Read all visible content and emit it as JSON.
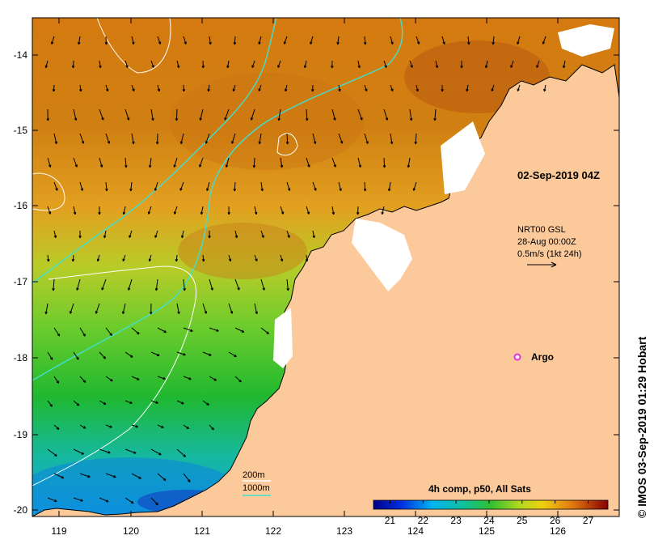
{
  "map": {
    "timestamp": "02-Sep-2019 04Z",
    "current_info": [
      "NRT00 GSL",
      "28-Aug 00:00Z",
      "0.5m/s (1kt 24h)"
    ],
    "argo_label": "Argo",
    "credit": "© IMOS 03-Sep-2019 01:29 Hobart",
    "depth_legend": {
      "line1": "200m",
      "line2": "1000m"
    },
    "lon_ticks": [
      "119",
      "120",
      "121",
      "122",
      "123",
      "124",
      "125",
      "126"
    ],
    "lat_ticks": [
      "-14",
      "-15",
      "-16",
      "-17",
      "-18",
      "-19",
      "-20"
    ],
    "colorbar": {
      "title": "4h comp, p50, All Sats",
      "ticks": [
        "21",
        "22",
        "23",
        "24",
        "25",
        "26",
        "27"
      ],
      "range": [
        20.5,
        27.6
      ]
    },
    "colors": {
      "land": "#fcc99b",
      "isobath_200": "#ffffff",
      "isobath_1000": "#40e0d0",
      "argo": "#e020e0",
      "coast": "#000000"
    }
  }
}
